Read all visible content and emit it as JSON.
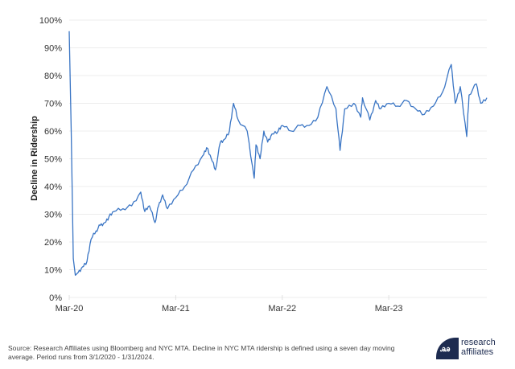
{
  "chart_data": {
    "type": "line",
    "title": "",
    "xlabel": "",
    "ylabel": "Decline in Ridership",
    "ylim": [
      0,
      100
    ],
    "y_ticks": [
      "0%",
      "10%",
      "20%",
      "30%",
      "40%",
      "50%",
      "60%",
      "70%",
      "80%",
      "90%",
      "100%"
    ],
    "x_ticks": [
      "Mar-20",
      "Mar-21",
      "Mar-22",
      "Mar-23"
    ],
    "grid": true,
    "legend": null,
    "series": [
      {
        "name": "Decline in NYC MTA Ridership",
        "color": "#3a75c4",
        "x": [
          "2020-03-01",
          "2020-03-08",
          "2020-03-15",
          "2020-03-22",
          "2020-04-01",
          "2020-04-15",
          "2020-05-01",
          "2020-05-15",
          "2020-06-01",
          "2020-06-15",
          "2020-07-01",
          "2020-07-15",
          "2020-08-01",
          "2020-09-01",
          "2020-10-01",
          "2020-11-01",
          "2020-11-15",
          "2020-12-01",
          "2020-12-20",
          "2021-01-01",
          "2021-01-15",
          "2021-02-01",
          "2021-03-01",
          "2021-04-01",
          "2021-05-01",
          "2021-06-01",
          "2021-06-15",
          "2021-07-01",
          "2021-07-15",
          "2021-08-01",
          "2021-08-15",
          "2021-09-01",
          "2021-09-15",
          "2021-10-01",
          "2021-11-01",
          "2021-11-25",
          "2021-12-01",
          "2021-12-15",
          "2021-12-28",
          "2022-01-10",
          "2022-01-25",
          "2022-02-15",
          "2022-03-01",
          "2022-04-01",
          "2022-05-01",
          "2022-06-01",
          "2022-07-01",
          "2022-08-01",
          "2022-09-01",
          "2022-09-15",
          "2022-10-01",
          "2022-11-01",
          "2022-11-25",
          "2022-12-01",
          "2022-12-26",
          "2023-01-15",
          "2023-02-01",
          "2023-03-01",
          "2023-04-01",
          "2023-05-01",
          "2023-06-01",
          "2023-07-01",
          "2023-08-01",
          "2023-09-01",
          "2023-10-01",
          "2023-10-15",
          "2023-11-01",
          "2023-11-23",
          "2023-12-01",
          "2023-12-26",
          "2024-01-10",
          "2024-01-31"
        ],
        "values": [
          96,
          60,
          14,
          8,
          9,
          11,
          13,
          21,
          24,
          26,
          27,
          29,
          31,
          32,
          33,
          38,
          31,
          33,
          27,
          33,
          37,
          32,
          36,
          40,
          46,
          51,
          54,
          50,
          46,
          56,
          57,
          60,
          70,
          64,
          60,
          43,
          55,
          50,
          60,
          56,
          59,
          60,
          62,
          60,
          62,
          62,
          65,
          76,
          68,
          53,
          68,
          70,
          65,
          72,
          64,
          71,
          68,
          70,
          69,
          71,
          68,
          66,
          69,
          74,
          84,
          70,
          76,
          58,
          73,
          77,
          70,
          72
        ]
      }
    ]
  },
  "footer": {
    "source_line1": "Source: Research Affiliates using Bloomberg and NYC MTA.  Decline in NYC MTA ridership is defined using a seven day moving",
    "source_line2": "average. Period runs from 3/1/2020 - 1/31/2024."
  },
  "logo": {
    "mark": "ꭿꭿ",
    "line1": "research",
    "line2": "affiliates"
  }
}
